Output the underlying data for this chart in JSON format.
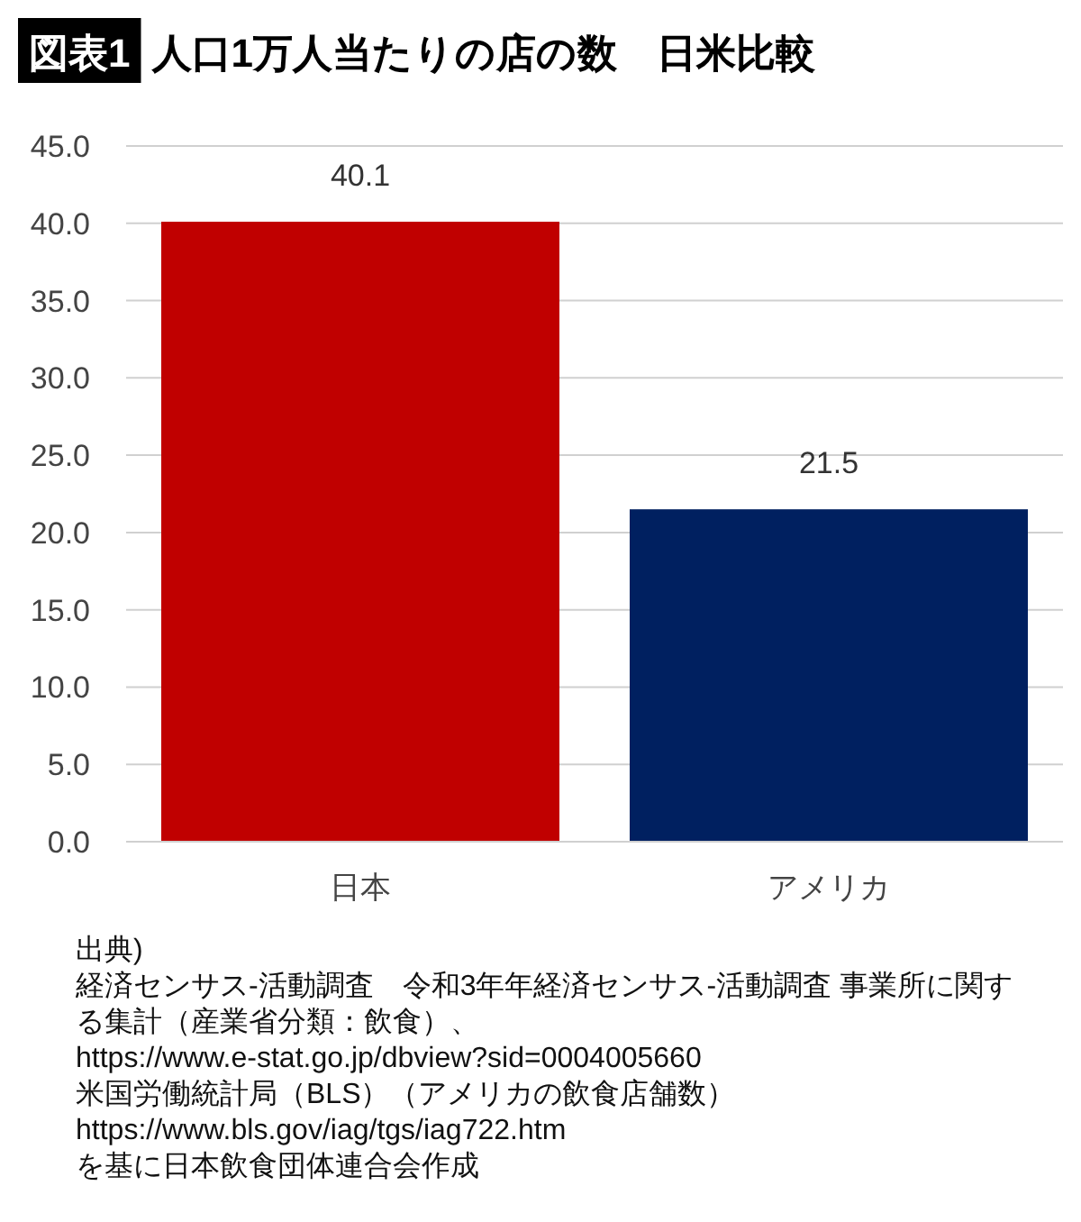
{
  "chart_data": {
    "type": "bar",
    "title": "人口1万人当たりの店の数　日米比較",
    "categories": [
      "日本",
      "アメリカ"
    ],
    "values": [
      40.1,
      21.5
    ],
    "colors": [
      "#c00000",
      "#002060"
    ],
    "data_labels": true,
    "grid": "y",
    "ylim": [
      0,
      45
    ],
    "yticks": [
      {
        "value": 0,
        "label": "0.0"
      },
      {
        "value": 5,
        "label": "5.0"
      },
      {
        "value": 10,
        "label": "10.0"
      },
      {
        "value": 15,
        "label": "15.0"
      },
      {
        "value": 20,
        "label": "20.0"
      },
      {
        "value": 25,
        "label": "25.0"
      },
      {
        "value": 30,
        "label": "30.0"
      },
      {
        "value": 35,
        "label": "35.0"
      },
      {
        "value": 40,
        "label": "40.0"
      },
      {
        "value": 45,
        "label": "45.0"
      }
    ],
    "annotations": [
      "図表1",
      "出典)",
      "経済センサス-活動調査　令和3年年経済センサス-活動調査 事業所に関する集計（産業省分類：飲食）、",
      "https://www.e-stat.go.jp/dbview?sid=0004005660",
      "米国労働統計局（BLS）（アメリカの飲食店舗数）",
      "https://www.bls.gov/iag/tgs/iag722.htm",
      "を基に日本飲食団体連合会作成"
    ]
  }
}
